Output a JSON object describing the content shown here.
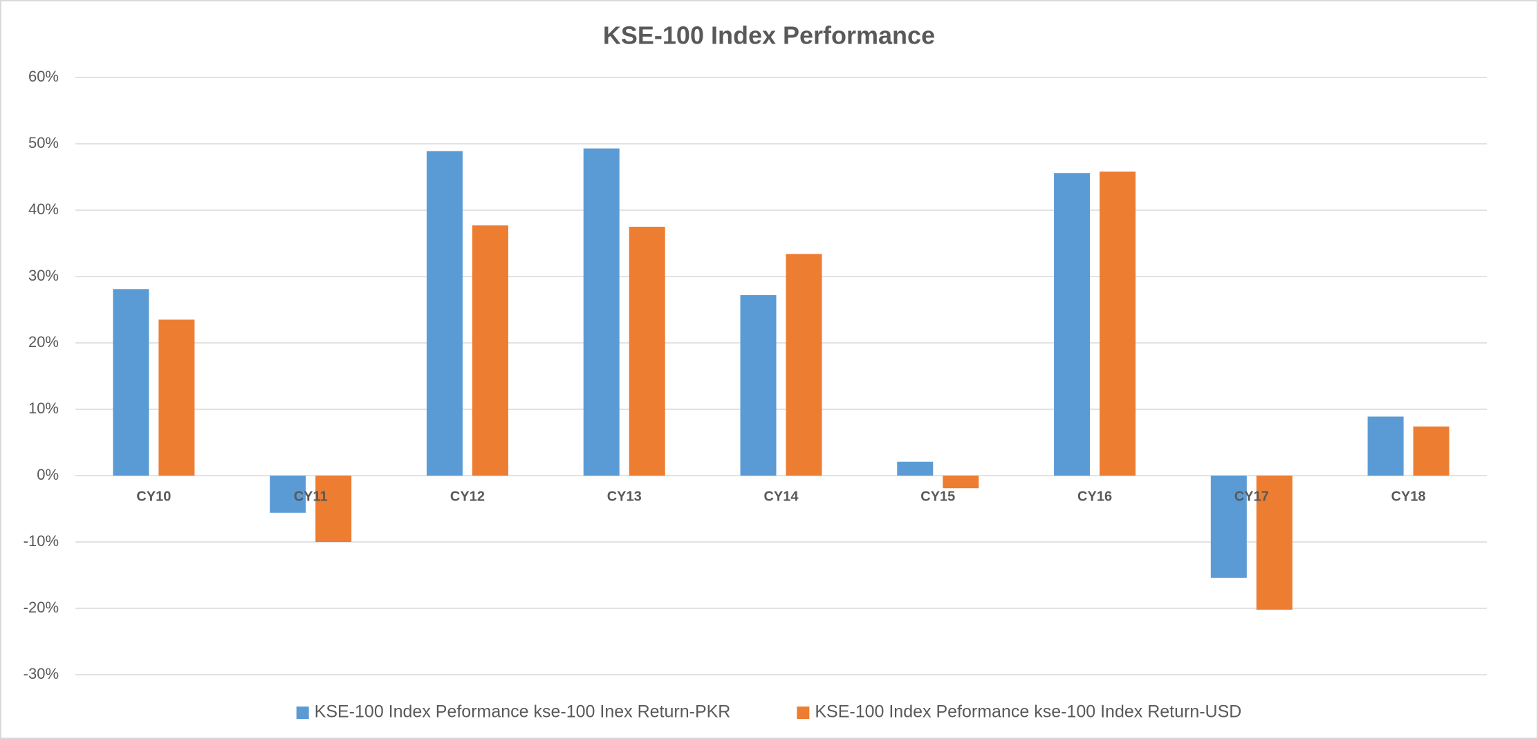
{
  "chart_data": {
    "type": "bar",
    "title": "KSE-100 Index Performance",
    "categories": [
      "CY10",
      "CY11",
      "CY12",
      "CY13",
      "CY14",
      "CY15",
      "CY16",
      "CY17",
      "CY18"
    ],
    "series": [
      {
        "name": "KSE-100 Index Peformance kse-100 Inex Return-PKR",
        "color": "#5b9bd5",
        "values": [
          28.1,
          -5.6,
          48.9,
          49.3,
          27.2,
          2.1,
          45.6,
          -15.4,
          8.9
        ]
      },
      {
        "name": "KSE-100 Index Peformance kse-100 Index Return-USD",
        "color": "#ed7d31",
        "values": [
          23.5,
          -10.0,
          37.7,
          37.5,
          33.4,
          -1.9,
          45.8,
          -20.2,
          7.4
        ]
      }
    ],
    "ylim": [
      -30,
      60
    ],
    "yticks": [
      {
        "value": -30,
        "label": "-30%"
      },
      {
        "value": -20,
        "label": "-20%"
      },
      {
        "value": -10,
        "label": "-10%"
      },
      {
        "value": 0,
        "label": "0%"
      },
      {
        "value": 10,
        "label": "10%"
      },
      {
        "value": 20,
        "label": "20%"
      },
      {
        "value": 30,
        "label": "30%"
      },
      {
        "value": 40,
        "label": "40%"
      },
      {
        "value": 50,
        "label": "50%"
      },
      {
        "value": 60,
        "label": "60%"
      }
    ],
    "grid": true,
    "legend": "bottom"
  }
}
